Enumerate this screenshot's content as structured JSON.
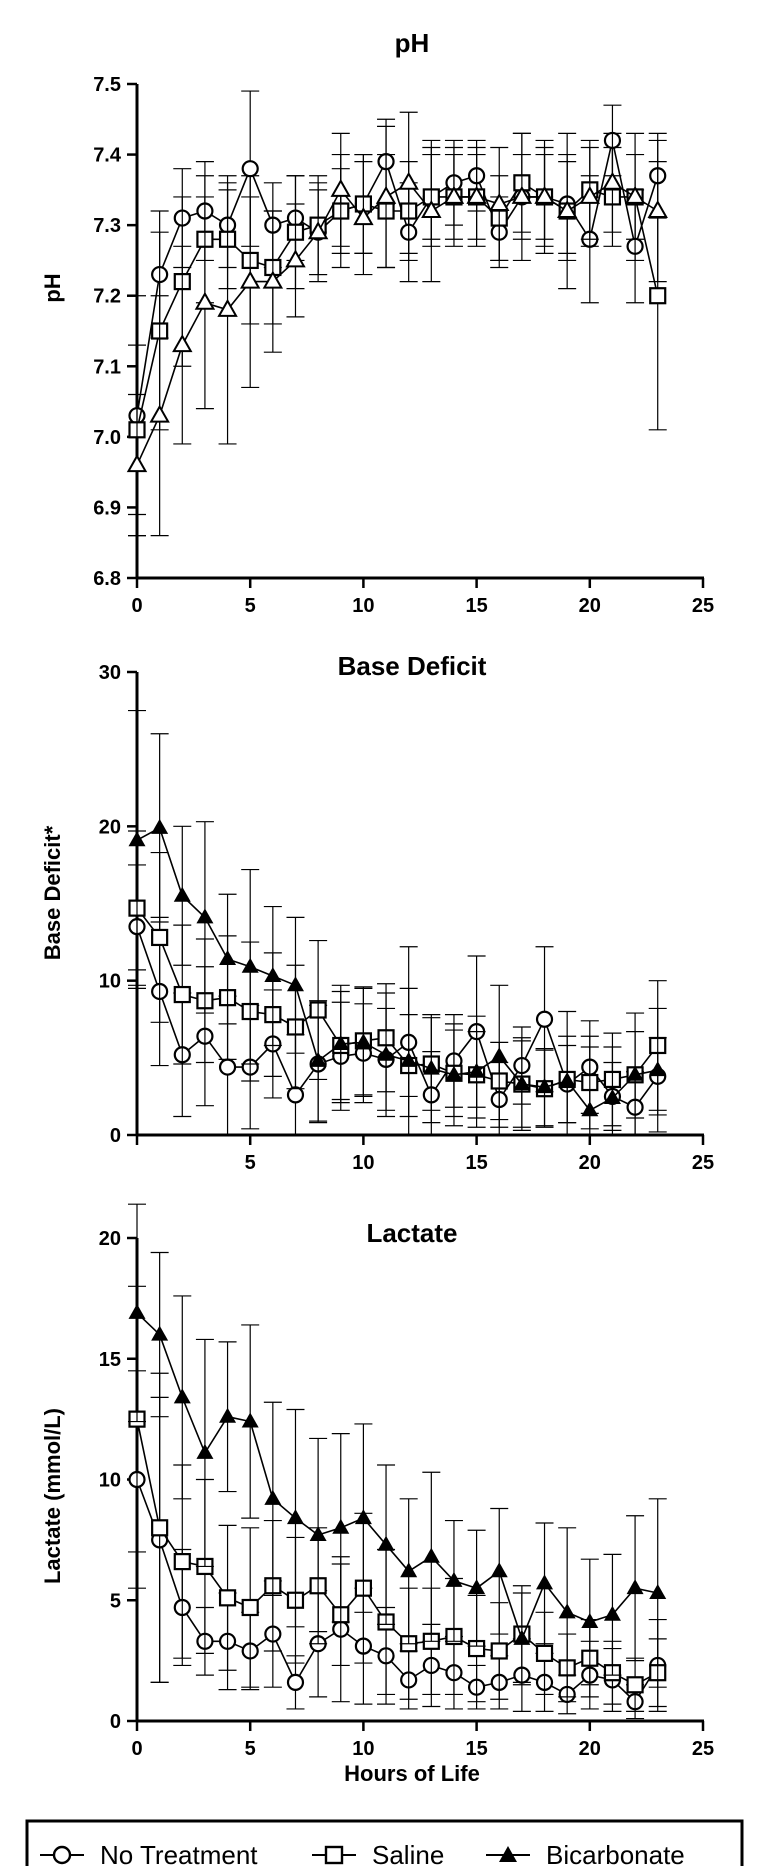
{
  "xlabel": "Hours of Life",
  "legend": [
    {
      "label": "No Treatment",
      "marker": "circle-open"
    },
    {
      "label": "Saline",
      "marker": "square-open"
    },
    {
      "label": "Bicarbonate",
      "marker": "triangle-filled"
    }
  ],
  "chart_data": [
    {
      "type": "line",
      "title": "pH",
      "ylabel": "pH",
      "xlim": [
        0,
        25
      ],
      "ylim": [
        6.8,
        7.5
      ],
      "xticks": [
        0,
        5,
        10,
        15,
        20,
        25
      ],
      "yticks": [
        6.8,
        6.9,
        7.0,
        7.1,
        7.2,
        7.3,
        7.4,
        7.5
      ],
      "ytick_labels": [
        "6.8",
        "6.9",
        "7.0",
        "7.1",
        "7.2",
        "7.3",
        "7.4",
        "7.5"
      ],
      "x": [
        0,
        1,
        2,
        3,
        4,
        5,
        6,
        7,
        8,
        9,
        10,
        11,
        12,
        13,
        14,
        15,
        16,
        17,
        18,
        19,
        20,
        21,
        22,
        23
      ],
      "series": [
        {
          "name": "No Treatment",
          "marker": "circle-open",
          "values": [
            7.03,
            7.23,
            7.31,
            7.32,
            7.3,
            7.38,
            7.3,
            7.31,
            7.29,
            7.32,
            7.33,
            7.39,
            7.29,
            7.34,
            7.36,
            7.37,
            7.29,
            7.34,
            7.34,
            7.33,
            7.28,
            7.42,
            7.27,
            7.37
          ],
          "errors": [
            0.17,
            0.09,
            0.07,
            0.07,
            0.06,
            0.11,
            0.06,
            0.06,
            0.06,
            0.08,
            0.07,
            0.06,
            0.07,
            0.06,
            0.06,
            0.05,
            0.05,
            0.06,
            0.06,
            0.07,
            0.09,
            0.05,
            0.08,
            0.06
          ]
        },
        {
          "name": "Saline",
          "marker": "square-open",
          "values": [
            7.01,
            7.15,
            7.22,
            7.28,
            7.28,
            7.25,
            7.24,
            7.29,
            7.3,
            7.32,
            7.33,
            7.32,
            7.32,
            7.34,
            7.34,
            7.34,
            7.31,
            7.36,
            7.34,
            7.32,
            7.35,
            7.34,
            7.34,
            7.2
          ],
          "errors": [
            0.12,
            0.14,
            0.12,
            0.09,
            0.07,
            0.09,
            0.08,
            0.08,
            0.07,
            0.06,
            0.07,
            0.08,
            0.07,
            0.07,
            0.06,
            0.06,
            0.06,
            0.07,
            0.07,
            0.07,
            0.07,
            0.07,
            0.06,
            0.19
          ]
        },
        {
          "name": "Bicarbonate",
          "marker": "triangle-filled",
          "values": [
            6.96,
            7.03,
            7.13,
            7.19,
            7.18,
            7.22,
            7.22,
            7.25,
            7.29,
            7.35,
            7.31,
            7.34,
            7.36,
            7.32,
            7.34,
            7.34,
            7.33,
            7.34,
            7.34,
            7.32,
            7.34,
            7.36,
            7.34,
            7.32
          ],
          "errors": [
            0.1,
            0.17,
            0.14,
            0.15,
            0.19,
            0.15,
            0.1,
            0.08,
            0.07,
            0.08,
            0.08,
            0.1,
            0.1,
            0.1,
            0.07,
            0.07,
            0.08,
            0.09,
            0.08,
            0.11,
            0.07,
            0.07,
            0.09,
            0.1
          ]
        }
      ]
    },
    {
      "type": "line",
      "title": "Base Deficit",
      "ylabel": "Base Deficit*",
      "xlim": [
        0,
        25
      ],
      "ylim": [
        0,
        30
      ],
      "xticks": [
        5,
        10,
        15,
        20,
        25
      ],
      "yticks": [
        0,
        10,
        20,
        30
      ],
      "ytick_labels": [
        "0",
        "10",
        "20",
        "30"
      ],
      "x": [
        0,
        1,
        2,
        3,
        4,
        5,
        6,
        7,
        8,
        9,
        10,
        11,
        12,
        13,
        14,
        15,
        16,
        17,
        18,
        19,
        20,
        21,
        22,
        23
      ],
      "series": [
        {
          "name": "No Treatment",
          "marker": "circle-open",
          "values": [
            13.5,
            9.3,
            5.2,
            6.4,
            4.4,
            4.4,
            5.9,
            2.6,
            4.6,
            5.1,
            5.3,
            4.9,
            6.0,
            2.6,
            4.8,
            6.7,
            2.3,
            4.5,
            7.5,
            3.3,
            4.4,
            2.5,
            1.8,
            3.8
          ],
          "errors": [
            4.0,
            4.8,
            4.0,
            4.5,
            4.6,
            4.0,
            3.5,
            3.9,
            3.8,
            3.5,
            3.2,
            3.3,
            3.5,
            2.8,
            3.0,
            4.9,
            2.4,
            2.5,
            4.7,
            2.5,
            3.0,
            2.2,
            2.3,
            2.5
          ]
        },
        {
          "name": "Saline",
          "marker": "square-open",
          "values": [
            14.7,
            12.8,
            9.1,
            8.7,
            8.9,
            8.0,
            7.8,
            7.0,
            8.1,
            5.8,
            6.1,
            6.3,
            4.5,
            4.6,
            4.0,
            3.9,
            3.5,
            3.3,
            3.0,
            3.6,
            3.4,
            3.6,
            3.9,
            5.8
          ],
          "errors": [
            5.0,
            5.5,
            4.5,
            4.0,
            4.0,
            4.5,
            4.0,
            4.0,
            4.5,
            3.5,
            3.5,
            3.5,
            3.3,
            3.0,
            2.8,
            2.8,
            2.5,
            2.8,
            2.5,
            2.8,
            3.0,
            3.0,
            2.8,
            4.2
          ]
        },
        {
          "name": "Bicarbonate",
          "marker": "triangle-filled",
          "values": [
            19.1,
            19.9,
            15.5,
            14.1,
            11.4,
            10.9,
            10.3,
            9.7,
            4.8,
            5.9,
            6.0,
            5.2,
            4.8,
            4.3,
            3.9,
            4.1,
            5.1,
            3.3,
            3.1,
            3.5,
            1.6,
            2.4,
            3.9,
            4.2
          ],
          "errors": [
            8.4,
            6.1,
            4.5,
            6.2,
            4.2,
            6.3,
            4.5,
            4.4,
            3.9,
            3.8,
            3.5,
            4.0,
            7.4,
            3.5,
            3.3,
            3.6,
            4.6,
            3.0,
            2.5,
            4.5,
            4.1,
            3.3,
            4.0,
            4.0
          ]
        }
      ]
    },
    {
      "type": "line",
      "title": "Lactate",
      "ylabel": "Lactate (mmol/L)",
      "xlim": [
        0,
        25
      ],
      "ylim": [
        0,
        20
      ],
      "xticks": [
        0,
        5,
        10,
        15,
        20,
        25
      ],
      "yticks": [
        0,
        5,
        10,
        15,
        20
      ],
      "ytick_labels": [
        "0",
        "5",
        "10",
        "15",
        "20"
      ],
      "x": [
        0,
        1,
        2,
        3,
        4,
        5,
        6,
        7,
        8,
        9,
        10,
        11,
        12,
        13,
        14,
        15,
        16,
        17,
        18,
        19,
        20,
        21,
        22,
        23
      ],
      "series": [
        {
          "name": "No Treatment",
          "marker": "circle-open",
          "values": [
            10.0,
            7.5,
            4.7,
            3.3,
            3.3,
            2.9,
            3.6,
            1.6,
            3.2,
            3.8,
            3.1,
            2.7,
            1.7,
            2.3,
            2.0,
            1.4,
            1.6,
            1.9,
            1.6,
            1.1,
            1.9,
            1.7,
            0.8,
            2.3
          ],
          "errors": [
            4.5,
            5.9,
            2.4,
            1.4,
            2.0,
            1.6,
            2.2,
            1.1,
            2.2,
            3.0,
            2.4,
            2.0,
            1.2,
            1.7,
            1.5,
            0.9,
            1.1,
            1.5,
            1.2,
            0.8,
            1.4,
            1.3,
            0.7,
            1.9
          ]
        },
        {
          "name": "Saline",
          "marker": "square-open",
          "values": [
            12.5,
            8.0,
            6.6,
            6.4,
            5.1,
            4.7,
            5.6,
            5.0,
            5.6,
            4.4,
            5.5,
            4.1,
            3.2,
            3.3,
            3.5,
            3.0,
            2.9,
            3.6,
            2.8,
            2.2,
            2.6,
            2.0,
            1.5,
            2.0
          ],
          "errors": [
            5.5,
            6.4,
            4.0,
            3.6,
            3.0,
            3.3,
            2.7,
            2.6,
            2.4,
            2.1,
            3.1,
            3.0,
            2.3,
            2.2,
            2.4,
            2.2,
            2.0,
            2.0,
            1.7,
            1.4,
            1.6,
            1.3,
            1.1,
            1.4
          ]
        },
        {
          "name": "Bicarbonate",
          "marker": "triangle-filled",
          "values": [
            16.9,
            16.0,
            13.4,
            11.1,
            12.6,
            12.4,
            9.2,
            8.4,
            7.7,
            8.0,
            8.4,
            7.3,
            6.2,
            6.8,
            5.8,
            5.5,
            6.2,
            3.4,
            5.7,
            4.5,
            4.1,
            4.4,
            5.5,
            5.3
          ],
          "errors": [
            4.5,
            3.4,
            4.2,
            4.7,
            3.1,
            4.0,
            4.0,
            4.5,
            4.0,
            3.9,
            3.9,
            3.3,
            3.0,
            3.5,
            2.5,
            2.4,
            2.6,
            1.9,
            2.5,
            3.5,
            2.6,
            2.5,
            3.0,
            3.9
          ]
        }
      ]
    }
  ]
}
